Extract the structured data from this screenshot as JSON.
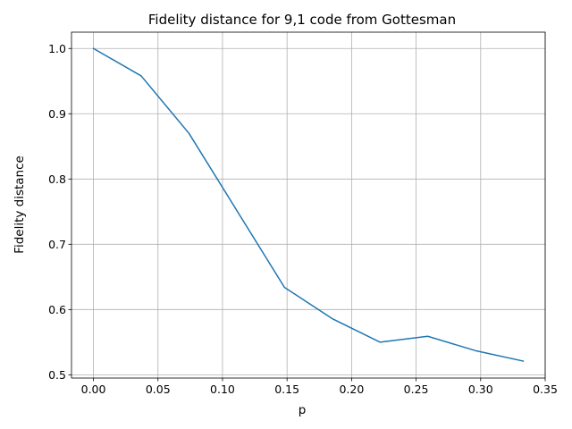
{
  "chart_data": {
    "type": "line",
    "title": "Fidelity distance for 9,1 code from Gottesman",
    "xlabel": "p",
    "ylabel": "Fidelity distance",
    "xlim": [
      -0.017,
      0.35
    ],
    "ylim": [
      0.495,
      1.025
    ],
    "grid": true,
    "x_ticks": [
      0.0,
      0.05,
      0.1,
      0.15,
      0.2,
      0.25,
      0.3,
      0.35
    ],
    "x_tick_labels": [
      "0.00",
      "0.05",
      "0.10",
      "0.15",
      "0.20",
      "0.25",
      "0.30",
      "0.35"
    ],
    "y_ticks": [
      0.5,
      0.6,
      0.7,
      0.8,
      0.9,
      1.0
    ],
    "y_tick_labels": [
      "0.5",
      "0.6",
      "0.7",
      "0.8",
      "0.9",
      "1.0"
    ],
    "series": [
      {
        "color": "#1f77b4",
        "x": [
          0.0,
          0.037,
          0.074,
          0.111,
          0.148,
          0.185,
          0.222,
          0.259,
          0.296,
          0.333
        ],
        "y": [
          1.0,
          0.958,
          0.87,
          0.752,
          0.634,
          0.586,
          0.55,
          0.559,
          0.537,
          0.521
        ]
      }
    ]
  }
}
